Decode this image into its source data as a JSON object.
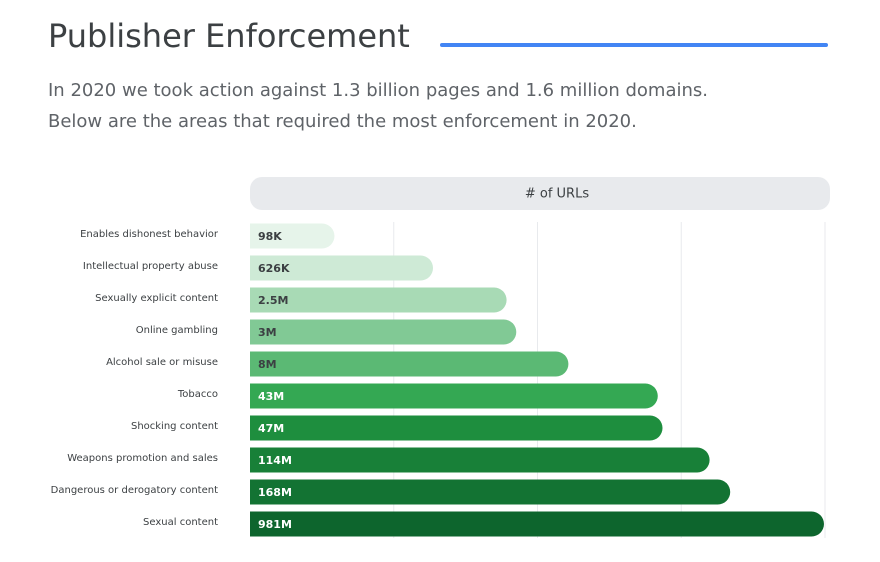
{
  "chart_data": {
    "type": "bar",
    "orientation": "horizontal",
    "title": "Publisher Enforcement",
    "subtitle": [
      "In 2020 we took action against 1.3 billion pages and 1.6 million domains.",
      "Below are the areas that required the most enforcement in 2020."
    ],
    "x_label": "# of URLs",
    "categories": [
      "Enables dishonest behavior",
      "Intellectual property abuse",
      "Sexually explicit content",
      "Online gambling",
      "Alcohol sale or misuse",
      "Tobacco",
      "Shocking content",
      "Weapons promotion and sales",
      "Dangerous or derogatory content",
      "Sexual content"
    ],
    "values": [
      98000,
      626000,
      2500000,
      3000000,
      8000000,
      43000000,
      47000000,
      114000000,
      168000000,
      981000000
    ],
    "value_labels": [
      "98K",
      "626K",
      "2.5M",
      "3M",
      "8M",
      "43M",
      "47M",
      "114M",
      "168M",
      "981M"
    ],
    "colors": [
      "#e6f4ea",
      "#ceead6",
      "#a8dab5",
      "#81c995",
      "#5bb974",
      "#34a853",
      "#1e8e3e",
      "#188038",
      "#137333",
      "#0d652d"
    ],
    "xlim": [
      20000,
      1000000000
    ],
    "log_scale": true
  }
}
